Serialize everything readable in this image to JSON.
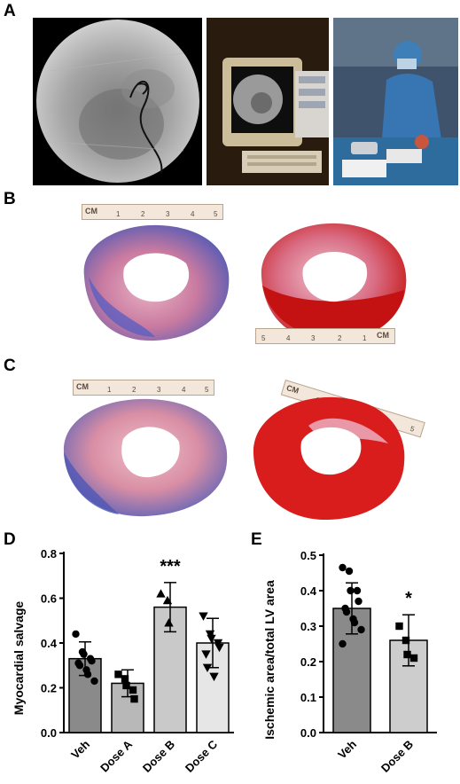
{
  "panels": {
    "A": {
      "letter": "A"
    },
    "B": {
      "letter": "B"
    },
    "C": {
      "letter": "C"
    },
    "D": {
      "letter": "D"
    },
    "E": {
      "letter": "E"
    }
  },
  "rulers": {
    "unit_label": "CM",
    "numbers": [
      "1",
      "2",
      "3",
      "4",
      "5"
    ]
  },
  "chart_data": [
    {
      "type": "bar",
      "panel": "D",
      "categories": [
        "Veh",
        "Dose A",
        "Dose B",
        "Dose C"
      ],
      "values": [
        0.33,
        0.22,
        0.56,
        0.4
      ],
      "errors": [
        0.075,
        0.06,
        0.11,
        0.11
      ],
      "ylabel": "Myocardial salvage",
      "ylim": [
        0.0,
        0.8
      ],
      "yticks": [
        "0.0",
        "0.2",
        "0.4",
        "0.6",
        "0.8"
      ],
      "bar_colors": [
        "#8a8a8a",
        "#b8b8b8",
        "#c9c9c9",
        "#e6e6e6"
      ],
      "markers": [
        "circle",
        "square",
        "triangle-up",
        "triangle-down"
      ],
      "points": [
        [
          0.44,
          0.36,
          0.35,
          0.33,
          0.32,
          0.31,
          0.3,
          0.28,
          0.26,
          0.23
        ],
        [
          0.26,
          0.24,
          0.21,
          0.19,
          0.15
        ],
        [
          0.62,
          0.59,
          0.49
        ],
        [
          0.52,
          0.44,
          0.42,
          0.4,
          0.38,
          0.35,
          0.29,
          0.25
        ]
      ],
      "annotations": [
        {
          "category": "Dose B",
          "text": "***"
        }
      ]
    },
    {
      "type": "bar",
      "panel": "E",
      "categories": [
        "Veh",
        "Dose B"
      ],
      "values": [
        0.35,
        0.26
      ],
      "errors": [
        0.072,
        0.072
      ],
      "ylabel": "Ischemic area/total LV area",
      "ylim": [
        0.0,
        0.5
      ],
      "yticks": [
        "0.0",
        "0.1",
        "0.2",
        "0.3",
        "0.4",
        "0.5"
      ],
      "bar_colors": [
        "#8a8a8a",
        "#cdcdcd"
      ],
      "markers": [
        "circle",
        "square"
      ],
      "points": [
        [
          0.465,
          0.455,
          0.4,
          0.4,
          0.37,
          0.35,
          0.34,
          0.32,
          0.31,
          0.29,
          0.25
        ],
        [
          0.3,
          0.26,
          0.22,
          0.21
        ]
      ],
      "annotations": [
        {
          "category": "Dose B",
          "text": "*"
        }
      ]
    }
  ]
}
